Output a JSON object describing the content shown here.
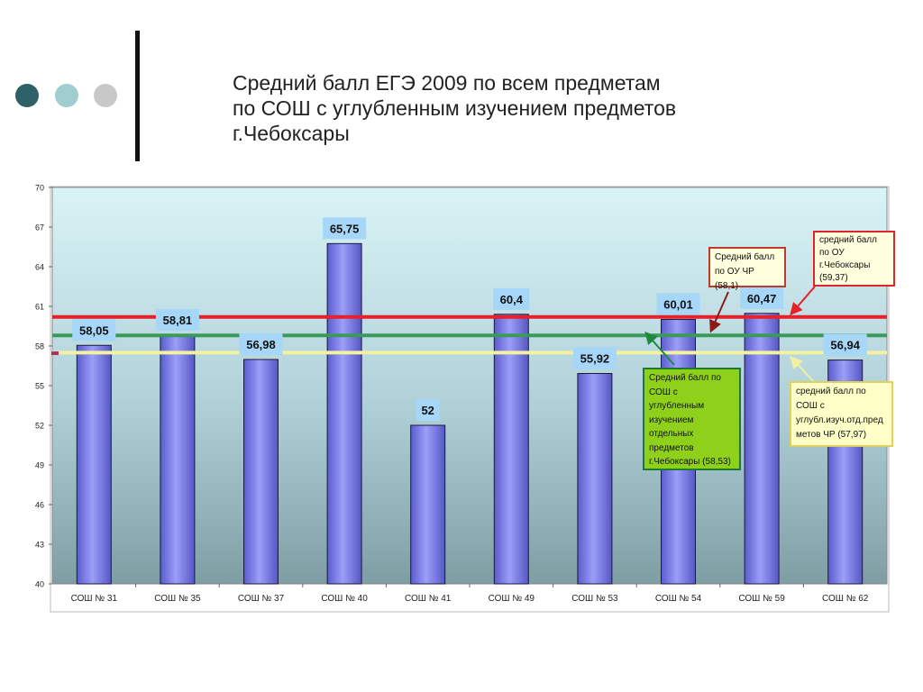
{
  "slide": {
    "title_lines": [
      "Средний балл ЕГЭ 2009 по всем предметам",
      "по СОШ с углубленным изучением предметов",
      "г.Чебоксары"
    ],
    "dot_colors": [
      "#2f6268",
      "#9fcdd0",
      "#c8c8c8"
    ]
  },
  "chart_data": {
    "type": "bar",
    "categories": [
      "СОШ № 31",
      "СОШ № 35",
      "СОШ № 37",
      "СОШ № 40",
      "СОШ № 41",
      "СОШ № 49",
      "СОШ № 53",
      "СОШ № 54",
      "СОШ № 59",
      "СОШ № 62"
    ],
    "values": [
      58.05,
      58.81,
      56.98,
      65.75,
      52,
      60.4,
      55.92,
      60.01,
      60.47,
      56.94
    ],
    "value_labels": [
      "58,05",
      "58,81",
      "56,98",
      "65,75",
      "52",
      "60,4",
      "55,92",
      "60,01",
      "60,47",
      "56,94"
    ],
    "ylim": [
      40,
      70
    ],
    "yticks": [
      "40",
      "43",
      "46",
      "49",
      "52",
      "55",
      "58",
      "61",
      "64",
      "67",
      "70"
    ],
    "grid": false,
    "bar_color": "#8a8cf0",
    "reference_lines": [
      {
        "value": 60.2,
        "color": "#e8202a"
      },
      {
        "value": 58.8,
        "color": "#3a9a5a"
      },
      {
        "value": 57.5,
        "color": "#f2f2a0"
      }
    ],
    "annotations": [
      {
        "lines": [
          "Средний балл",
          "по ОУ ЧР (58,1)"
        ],
        "border": "#c0392b",
        "bg": "#ffffde"
      },
      {
        "lines": [
          "средний балл",
          "по ОУ",
          "г.Чебоксары",
          "(59,37)"
        ],
        "border": "#d9272e",
        "bg": "#ffffde"
      },
      {
        "lines": [
          "Средний балл по",
          "СОШ с",
          "углубленным",
          "изучением",
          "отдельных",
          "предметов",
          "г.Чебоксары (58,53)"
        ],
        "border": "#1e7a2e",
        "bg": "#8fd11a"
      },
      {
        "lines": [
          "средний балл по",
          "СОШ с",
          "углубл.изуч.отд.пред",
          "метов ЧР (57,97)"
        ],
        "border": "#e0d060",
        "bg": "#ffffc8"
      }
    ]
  }
}
